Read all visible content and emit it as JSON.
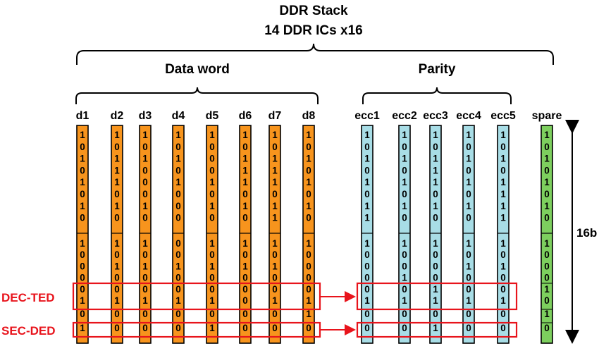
{
  "title": "DDR Stack",
  "subtitle": "14 DDR ICs x16",
  "group_data": "Data word",
  "group_parity": "Parity",
  "size_label": "16b",
  "label_dec_ted": "DEC-TED",
  "label_sec_ded": "SEC-DED",
  "colors": {
    "data": "#f7941d",
    "parity": "#a8dde6",
    "spare": "#7dcf5e",
    "highlight": "#e8141c"
  },
  "columns": [
    {
      "label": "d1",
      "kind": "data",
      "bits": "1010101010000101"
    },
    {
      "label": "d2",
      "kind": "data",
      "bits": "1011101010100100"
    },
    {
      "label": "d3",
      "kind": "data",
      "bits": "1010001010100100"
    },
    {
      "label": "d4",
      "kind": "data",
      "bits": "1010100000100100"
    },
    {
      "label": "d5",
      "kind": "data",
      "bits": "1000101010100101"
    },
    {
      "label": "d6",
      "kind": "data",
      "bits": "1011101010100000"
    },
    {
      "label": "d7",
      "kind": "data",
      "bits": "1011101110100100"
    },
    {
      "label": "d8",
      "kind": "data",
      "bits": "1010101010000110"
    },
    {
      "label": "ecc1",
      "kind": "parity",
      "bits": "1010101110000100"
    },
    {
      "label": "ecc2",
      "kind": "parity",
      "bits": "1010101010010100"
    },
    {
      "label": "ecc3",
      "kind": "parity",
      "bits": "1011101010001101"
    },
    {
      "label": "ecc4",
      "kind": "parity",
      "bits": "1010101010100100"
    },
    {
      "label": "ecc5",
      "kind": "parity",
      "bits": "1010111110100100"
    },
    {
      "label": "spare",
      "kind": "spare",
      "bits": "1010101010001010"
    }
  ]
}
